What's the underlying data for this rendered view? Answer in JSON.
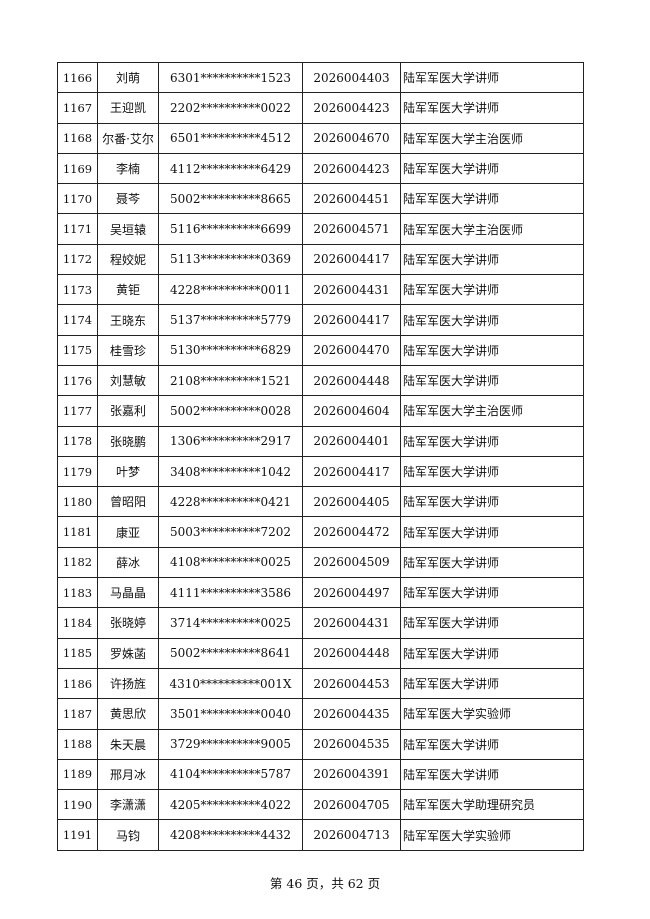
{
  "rows": [
    [
      "1166",
      "刘萌",
      "6301**********1523",
      "2026004403",
      "陆军军医大学讲师"
    ],
    [
      "1167",
      "王迎凯",
      "2202**********0022",
      "2026004423",
      "陆军军医大学讲师"
    ],
    [
      "1168",
      "尔番·艾尔",
      "6501**********4512",
      "2026004670",
      "陆军军医大学主治医师"
    ],
    [
      "1169",
      "李楠",
      "4112**********6429",
      "2026004423",
      "陆军军医大学讲师"
    ],
    [
      "1170",
      "聂芩",
      "5002**********8665",
      "2026004451",
      "陆军军医大学讲师"
    ],
    [
      "1171",
      "吴垣辕",
      "5116**********6699",
      "2026004571",
      "陆军军医大学主治医师"
    ],
    [
      "1172",
      "程姣妮",
      "5113**********0369",
      "2026004417",
      "陆军军医大学讲师"
    ],
    [
      "1173",
      "黄钜",
      "4228**********0011",
      "2026004431",
      "陆军军医大学讲师"
    ],
    [
      "1174",
      "王晓东",
      "5137**********5779",
      "2026004417",
      "陆军军医大学讲师"
    ],
    [
      "1175",
      "桂雪珍",
      "5130**********6829",
      "2026004470",
      "陆军军医大学讲师"
    ],
    [
      "1176",
      "刘慧敏",
      "2108**********1521",
      "2026004448",
      "陆军军医大学讲师"
    ],
    [
      "1177",
      "张嘉利",
      "5002**********0028",
      "2026004604",
      "陆军军医大学主治医师"
    ],
    [
      "1178",
      "张晓鹏",
      "1306**********2917",
      "2026004401",
      "陆军军医大学讲师"
    ],
    [
      "1179",
      "叶梦",
      "3408**********1042",
      "2026004417",
      "陆军军医大学讲师"
    ],
    [
      "1180",
      "曾昭阳",
      "4228**********0421",
      "2026004405",
      "陆军军医大学讲师"
    ],
    [
      "1181",
      "康亚",
      "5003**********7202",
      "2026004472",
      "陆军军医大学讲师"
    ],
    [
      "1182",
      "薛冰",
      "4108**********0025",
      "2026004509",
      "陆军军医大学讲师"
    ],
    [
      "1183",
      "马晶晶",
      "4111**********3586",
      "2026004497",
      "陆军军医大学讲师"
    ],
    [
      "1184",
      "张晓婷",
      "3714**********0025",
      "2026004431",
      "陆军军医大学讲师"
    ],
    [
      "1185",
      "罗姝菡",
      "5002**********8641",
      "2026004448",
      "陆军军医大学讲师"
    ],
    [
      "1186",
      "许扬旌",
      "4310**********001X",
      "2026004453",
      "陆军军医大学讲师"
    ],
    [
      "1187",
      "黄思欣",
      "3501**********0040",
      "2026004435",
      "陆军军医大学实验师"
    ],
    [
      "1188",
      "朱天晨",
      "3729**********9005",
      "2026004535",
      "陆军军医大学讲师"
    ],
    [
      "1189",
      "邢月冰",
      "4104**********5787",
      "2026004391",
      "陆军军医大学讲师"
    ],
    [
      "1190",
      "李潇潇",
      "4205**********4022",
      "2026004705",
      "陆军军医大学助理研究员"
    ],
    [
      "1191",
      "马钧",
      "4208**********4432",
      "2026004713",
      "陆军军医大学实验师"
    ]
  ],
  "footer": "第 46 页，共 62 页"
}
